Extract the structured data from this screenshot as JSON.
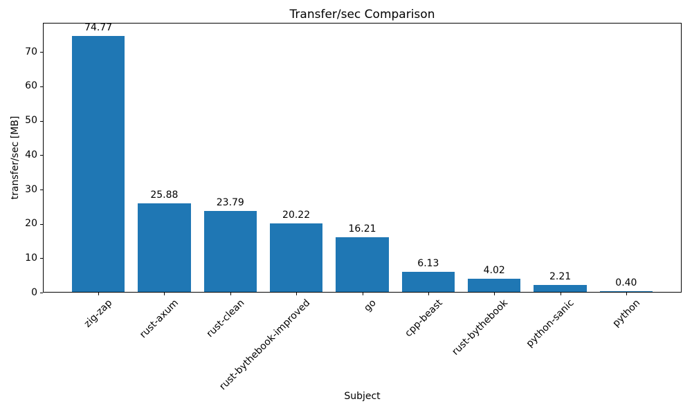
{
  "chart_data": {
    "type": "bar",
    "title": "Transfer/sec Comparison",
    "xlabel": "Subject",
    "ylabel": "transfer/sec [MB]",
    "categories": [
      "zig-zap",
      "rust-axum",
      "rust-clean",
      "rust-bythebook-improved",
      "go",
      "cpp-beast",
      "rust-bythebook",
      "python-sanic",
      "python"
    ],
    "values": [
      74.77,
      25.88,
      23.79,
      20.22,
      16.21,
      6.13,
      4.02,
      2.21,
      0.4
    ],
    "value_labels": [
      "74.77",
      "25.88",
      "23.79",
      "20.22",
      "16.21",
      "6.13",
      "4.02",
      "2.21",
      "0.40"
    ],
    "yticks": [
      0,
      10,
      20,
      30,
      40,
      50,
      60,
      70
    ],
    "ylim": [
      0,
      78.5
    ],
    "bar_color": "#1f77b4",
    "axis_color": "#000000",
    "text_color": "#000000",
    "x_tick_rotation_deg": 45,
    "grid": false,
    "legend_position": "none"
  }
}
